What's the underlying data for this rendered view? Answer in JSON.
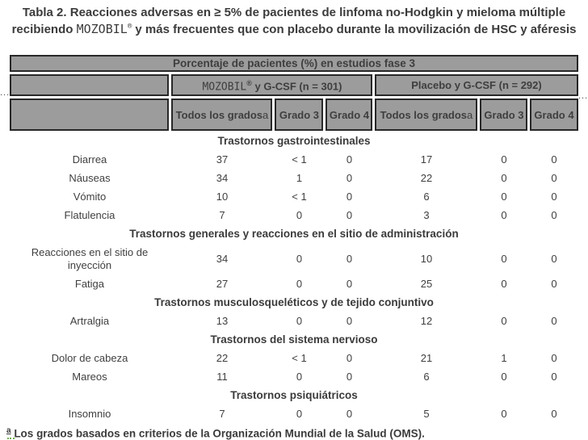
{
  "title": {
    "part1": "Tabla 2. Reacciones adversas en ≥ 5% de pacientes de linfoma no-Hodgkin y mieloma múltiple recibiendo ",
    "brand": "MOZOBIL",
    "reg": "®",
    "part2": " y más frecuentes que con placebo durante la movilización de HSC y aféresis"
  },
  "table": {
    "top_header": "Porcentaje de pacientes (%) en estudios fase 3",
    "groups": [
      {
        "brand": "MOZOBIL",
        "reg": "®",
        "rest": " y G-CSF (n = 301)"
      },
      {
        "label": "Placebo y G-CSF (n = 292)"
      }
    ],
    "col_headers": [
      {
        "label": "Todos los grados",
        "marker": "a"
      },
      {
        "label": "Grado 3",
        "marker": ""
      },
      {
        "label": "Grado 4",
        "marker": ""
      },
      {
        "label": "Todos los grados",
        "marker": "a"
      },
      {
        "label": "Grado 3",
        "marker": ""
      },
      {
        "label": "Grado 4",
        "marker": ""
      }
    ],
    "sections": [
      {
        "header": "Trastornos gastrointestinales",
        "rows": [
          {
            "label": "Diarrea",
            "values": [
              "37",
              "< 1",
              "0",
              "17",
              "0",
              "0"
            ]
          },
          {
            "label": "Náuseas",
            "values": [
              "34",
              "1",
              "0",
              "22",
              "0",
              "0"
            ]
          },
          {
            "label": "Vómito",
            "values": [
              "10",
              "< 1",
              "0",
              "6",
              "0",
              "0"
            ]
          },
          {
            "label": "Flatulencia",
            "values": [
              "7",
              "0",
              "0",
              "3",
              "0",
              "0"
            ]
          }
        ]
      },
      {
        "header": "Trastornos generales y reacciones en el sitio de administración",
        "rows": [
          {
            "label": "Reacciones en el sitio de inyección",
            "values": [
              "34",
              "0",
              "0",
              "10",
              "0",
              "0"
            ]
          },
          {
            "label": "Fatiga",
            "values": [
              "27",
              "0",
              "0",
              "25",
              "0",
              "0"
            ]
          }
        ]
      },
      {
        "header": "Trastornos musculosqueléticos y de tejido conjuntivo",
        "rows": [
          {
            "label": "Artralgia",
            "values": [
              "13",
              "0",
              "0",
              "12",
              "0",
              "0"
            ]
          }
        ]
      },
      {
        "header": "Trastornos del sistema nervioso",
        "rows": [
          {
            "label": "Dolor de cabeza",
            "values": [
              "22",
              "< 1",
              "0",
              "21",
              "1",
              "0"
            ]
          },
          {
            "label": "Mareos",
            "values": [
              "11",
              "0",
              "0",
              "6",
              "0",
              "0"
            ]
          }
        ]
      },
      {
        "header": "Trastornos psiquiátricos",
        "rows": [
          {
            "label": "Insomnio",
            "values": [
              "7",
              "0",
              "0",
              "5",
              "0",
              "0"
            ]
          }
        ]
      }
    ]
  },
  "footnote": {
    "marker": "a",
    "text": " Los grados basados en criterios de la Organización Mundial de la Salud (OMS)."
  },
  "artifacts": {
    "left_dots": "...",
    "right_dots": "..."
  },
  "colors": {
    "header_bg": "#9c9c9c",
    "border": "#282828",
    "text": "#3e3e3e"
  }
}
